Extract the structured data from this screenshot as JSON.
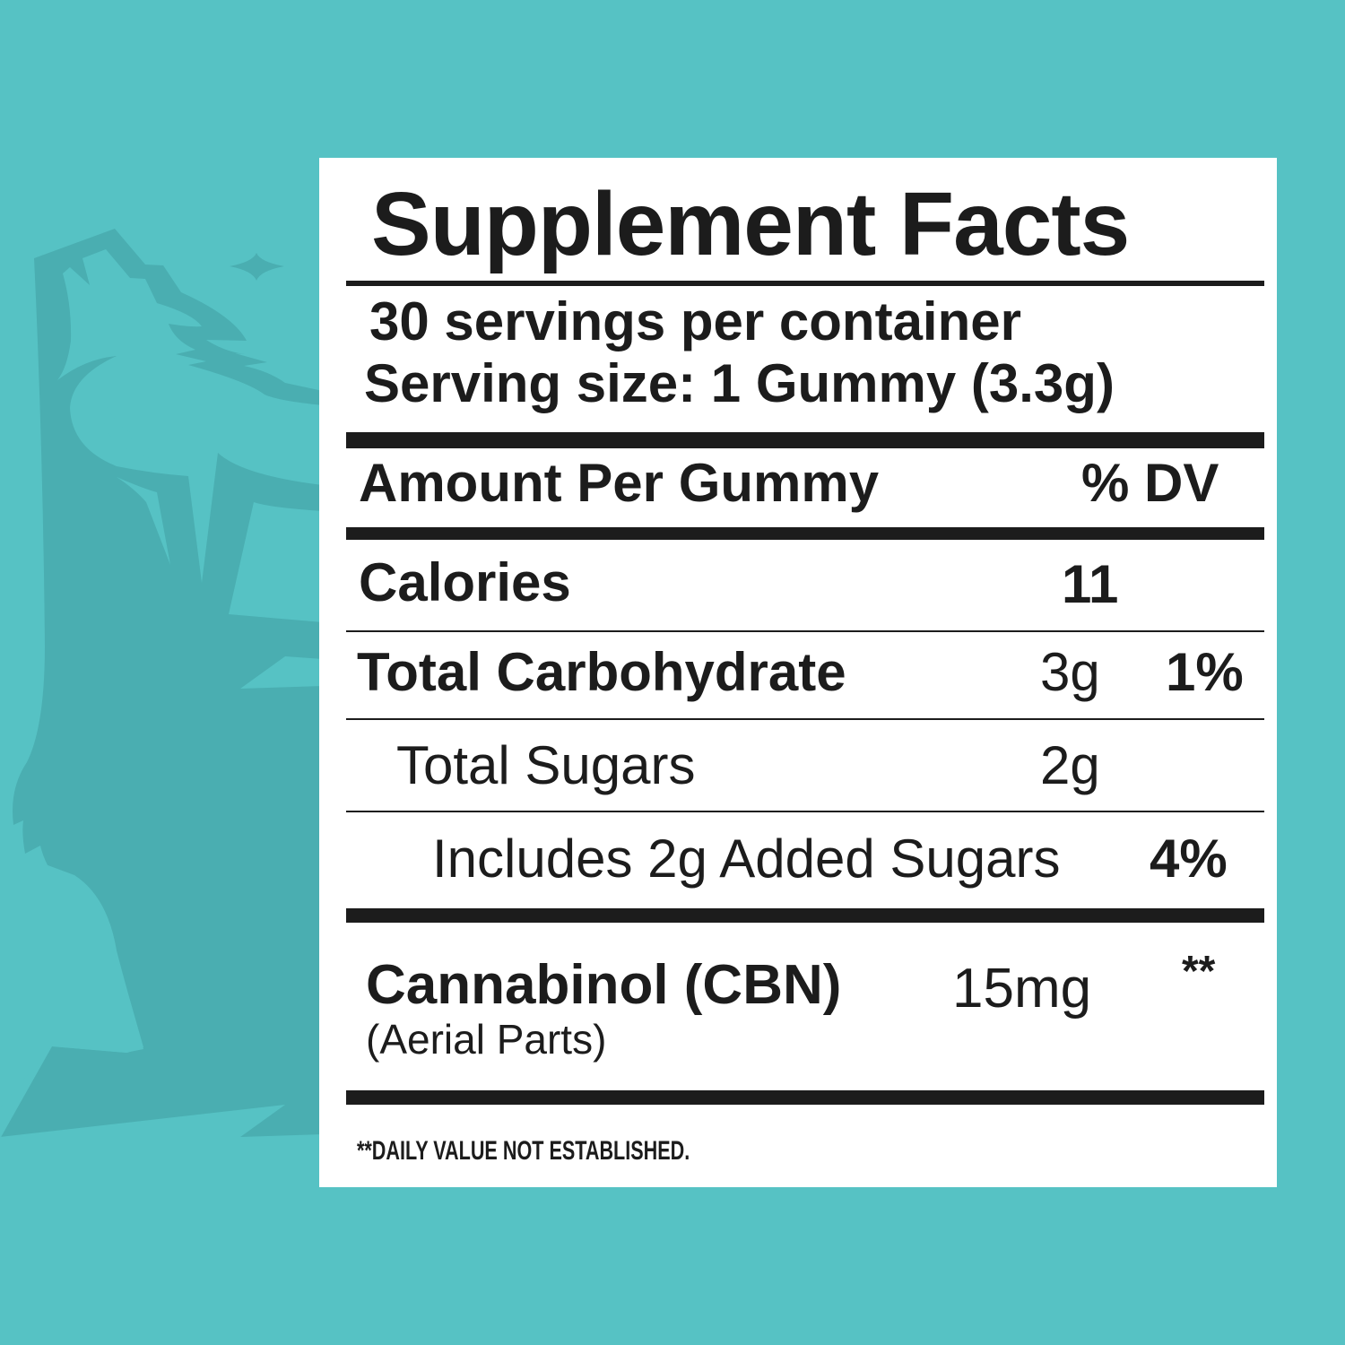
{
  "colors": {
    "background": "#56c2c4",
    "logo": "#4aaeb1",
    "panel": "#ffffff",
    "text": "#1c1c1c"
  },
  "logo": {
    "icon": "howling-wolf-icon"
  },
  "label": {
    "title": "Supplement Facts",
    "servings_per_container": "30 servings per container",
    "serving_size": "Serving size: 1 Gummy (3.3g)",
    "header_amount": "Amount Per Gummy",
    "header_dv": "% DV",
    "rows": [
      {
        "name": "Calories",
        "amount": "11",
        "dv": ""
      },
      {
        "name": "Total Carbohydrate",
        "amount": "3g",
        "dv": "1%"
      },
      {
        "name": "Total Sugars",
        "amount": "2g",
        "dv": ""
      },
      {
        "name": "Includes 2g Added Sugars",
        "amount": "",
        "dv": "4%"
      },
      {
        "name": "Cannabinol (CBN)",
        "sub": "(Aerial Parts)",
        "amount": "15mg",
        "dv": "**"
      }
    ],
    "footnote": "**DAILY VALUE NOT ESTABLISHED."
  }
}
